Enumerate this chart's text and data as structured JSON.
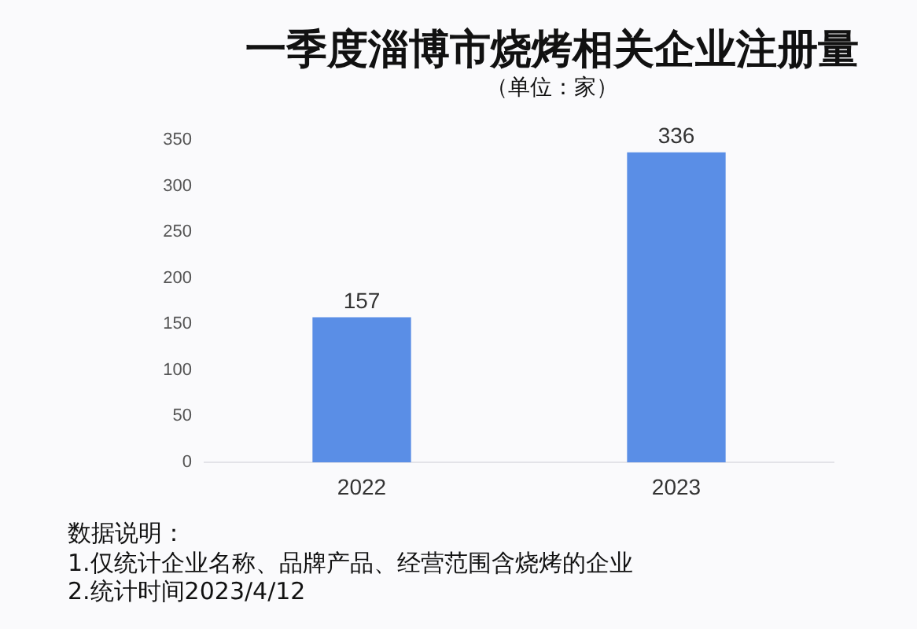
{
  "chart_data": {
    "type": "bar",
    "title": "一季度淄博市烧烤相关企业注册量",
    "subtitle": "（单位：家）",
    "categories": [
      "2022",
      "2023"
    ],
    "values": [
      157,
      336
    ],
    "color": "#5a8ee6",
    "ylim": [
      0,
      350
    ],
    "yticks": [
      0,
      50,
      100,
      150,
      200,
      250,
      300,
      350
    ],
    "grid": false,
    "legend": false,
    "data_labels": true,
    "annotations": [
      "数据说明：",
      "1.仅统计企业名称、品牌产品、经营范围含烧烤的企业",
      "2.统计时间2023/4/12"
    ]
  }
}
